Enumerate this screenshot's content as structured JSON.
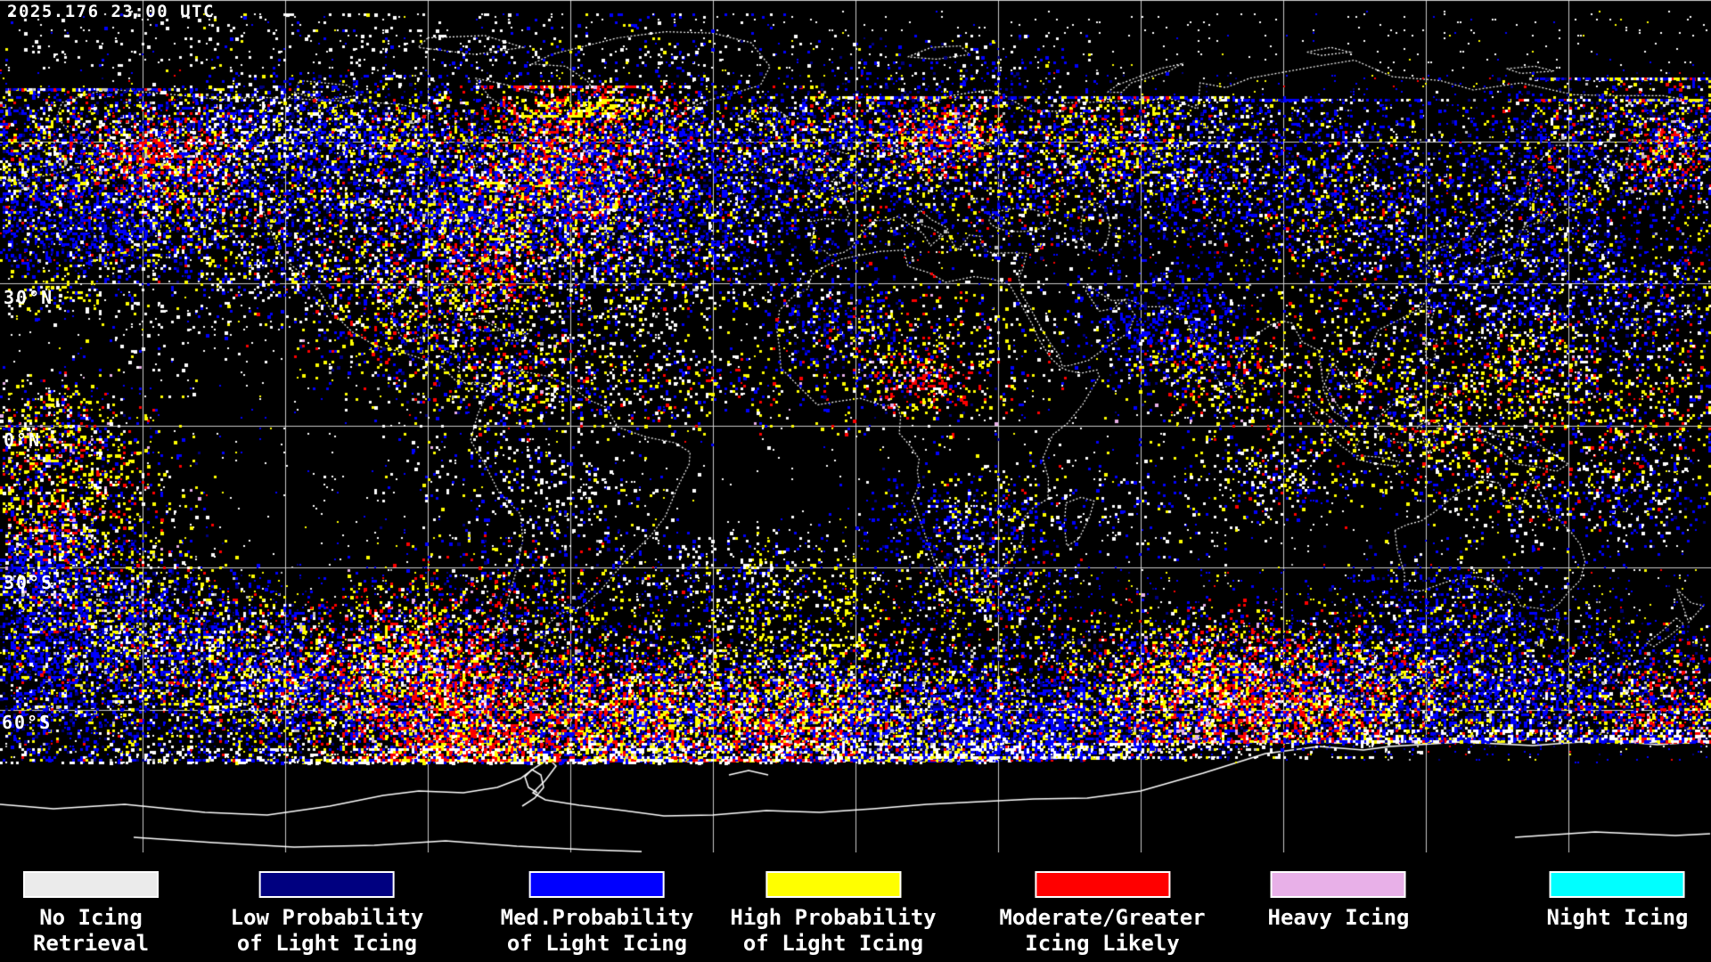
{
  "header": {
    "timestamp": "2025.176 23:00 UTC"
  },
  "map": {
    "latitude_labels": [
      {
        "text": "30°N"
      },
      {
        "text": "0°N"
      },
      {
        "text": "30°S"
      },
      {
        "text": "60°S"
      }
    ],
    "grid_spacing_degrees": 30
  },
  "legend": {
    "items": [
      {
        "line1": "No Icing",
        "line2": "Retrieval",
        "color": "#ebebeb"
      },
      {
        "line1": "Low Probability",
        "line2": "of Light Icing",
        "color": "#000080"
      },
      {
        "line1": "Med.Probability",
        "line2": "of Light Icing",
        "color": "#0000ff"
      },
      {
        "line1": "High Probability",
        "line2": "of Light Icing",
        "color": "#ffff00"
      },
      {
        "line1": "Moderate/Greater",
        "line2": "Icing Likely",
        "color": "#ff0000"
      },
      {
        "line1": "Heavy Icing",
        "line2": "",
        "color": "#e8b0e8"
      },
      {
        "line1": "Night Icing",
        "line2": "",
        "color": "#00ffff"
      }
    ]
  },
  "palette": {
    "background": "#000000",
    "grid": "#e0e0e0",
    "coastline": "#ffffff",
    "text": "#ffffff",
    "no_icing": "#ffffff",
    "low_prob": "#000080",
    "med_prob": "#0000ff",
    "high_prob": "#ffff00",
    "moderate_greater": "#ff0000",
    "heavy": "#e8b0e8",
    "night": "#00ffff",
    "gray_speck": "#c0c0c0"
  }
}
